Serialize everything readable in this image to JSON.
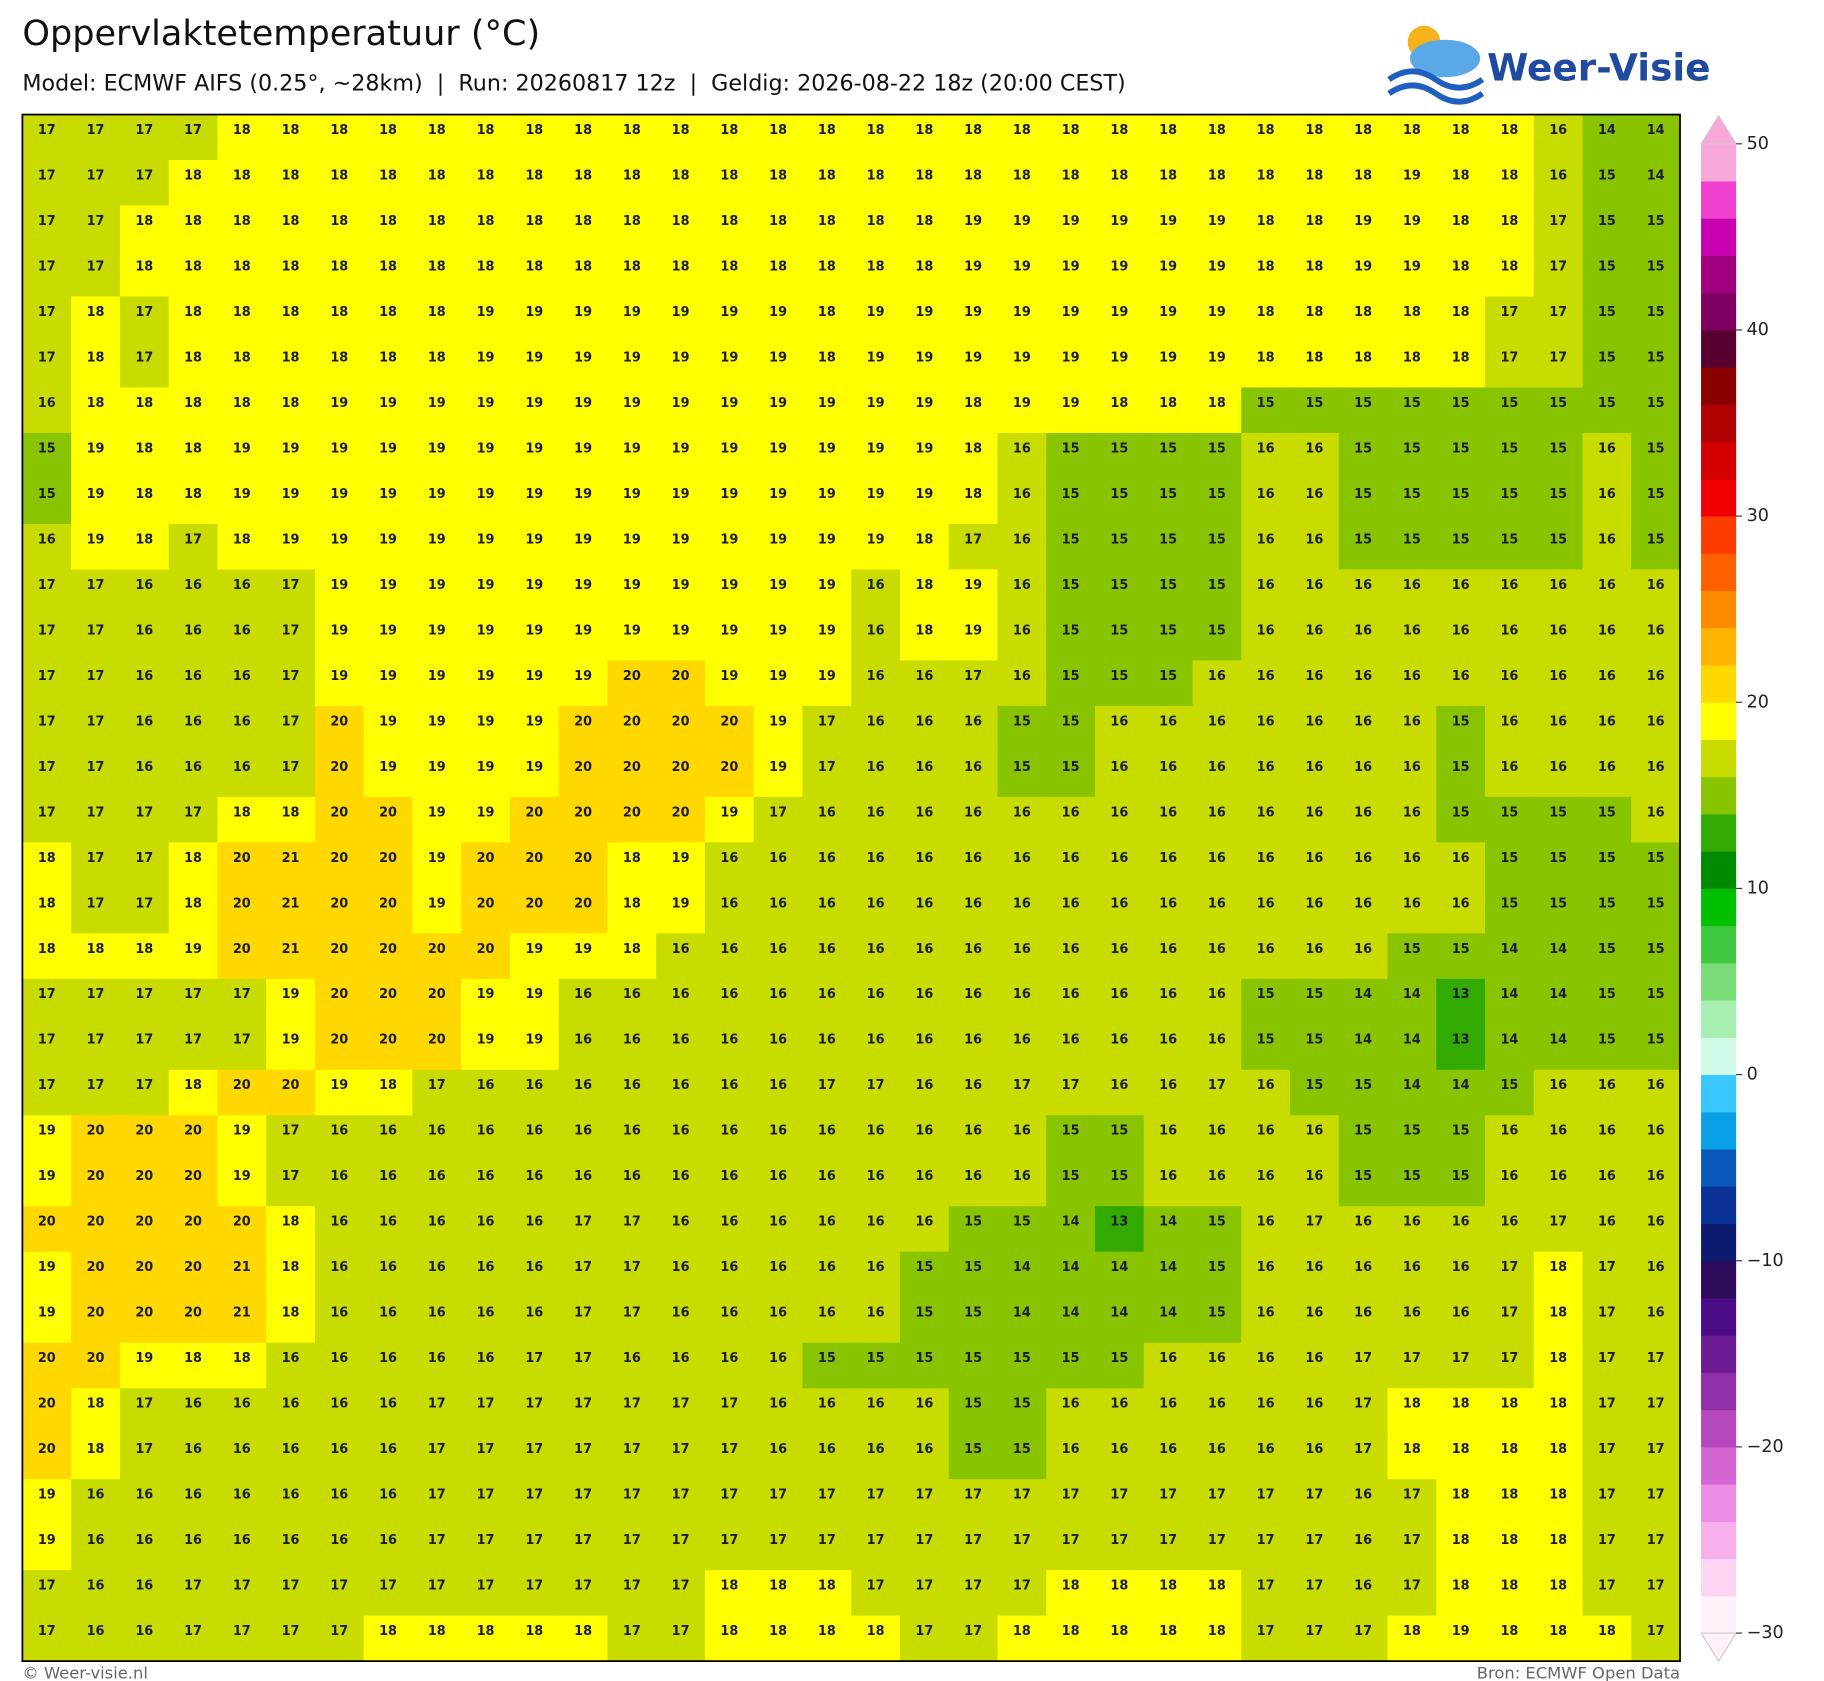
{
  "header": {
    "title": "Oppervlaktetemperatuur (°C)",
    "subtitle": "Model: ECMWF AIFS (0.25°, ~28km)  |  Run: 20260817 12z  |  Geldig: 2026-08-22 18z (20:00 CEST)",
    "logo": "Weer-Visie"
  },
  "map": {
    "values": [
      [
        17,
        17,
        17,
        17,
        18,
        18,
        18,
        18,
        18,
        18,
        18,
        18,
        18,
        18,
        18,
        18,
        18,
        18,
        18,
        18,
        18,
        18,
        18,
        18,
        18,
        18,
        18,
        18,
        18,
        18,
        18,
        16,
        14,
        14
      ],
      [
        17,
        17,
        17,
        18,
        18,
        18,
        18,
        18,
        18,
        18,
        18,
        18,
        18,
        18,
        18,
        18,
        18,
        18,
        18,
        18,
        18,
        18,
        18,
        18,
        18,
        18,
        18,
        18,
        19,
        18,
        18,
        16,
        15,
        14
      ],
      [
        17,
        17,
        18,
        18,
        18,
        18,
        18,
        18,
        18,
        18,
        18,
        18,
        18,
        18,
        18,
        18,
        18,
        18,
        18,
        19,
        19,
        19,
        19,
        19,
        19,
        18,
        18,
        19,
        19,
        18,
        18,
        17,
        15,
        15
      ],
      [
        17,
        17,
        18,
        18,
        18,
        18,
        18,
        18,
        18,
        18,
        18,
        18,
        18,
        18,
        18,
        18,
        18,
        18,
        18,
        19,
        19,
        19,
        19,
        19,
        19,
        18,
        18,
        19,
        19,
        18,
        18,
        17,
        15,
        15
      ],
      [
        17,
        18,
        17,
        18,
        18,
        18,
        18,
        18,
        18,
        19,
        19,
        19,
        19,
        19,
        19,
        19,
        18,
        19,
        19,
        19,
        19,
        19,
        19,
        19,
        19,
        18,
        18,
        18,
        18,
        18,
        17,
        17,
        15,
        15
      ],
      [
        17,
        18,
        17,
        18,
        18,
        18,
        18,
        18,
        18,
        19,
        19,
        19,
        19,
        19,
        19,
        19,
        18,
        19,
        19,
        19,
        19,
        19,
        19,
        19,
        19,
        18,
        18,
        18,
        18,
        18,
        17,
        17,
        15,
        15
      ],
      [
        16,
        18,
        18,
        18,
        18,
        18,
        19,
        19,
        19,
        19,
        19,
        19,
        19,
        19,
        19,
        19,
        19,
        19,
        19,
        18,
        19,
        19,
        18,
        18,
        18,
        15,
        15,
        15,
        15,
        15,
        15,
        15,
        15,
        15
      ],
      [
        15,
        19,
        18,
        18,
        19,
        19,
        19,
        19,
        19,
        19,
        19,
        19,
        19,
        19,
        19,
        19,
        19,
        19,
        19,
        18,
        16,
        15,
        15,
        15,
        15,
        16,
        16,
        15,
        15,
        15,
        15,
        15,
        16,
        15
      ],
      [
        15,
        19,
        18,
        18,
        19,
        19,
        19,
        19,
        19,
        19,
        19,
        19,
        19,
        19,
        19,
        19,
        19,
        19,
        19,
        18,
        16,
        15,
        15,
        15,
        15,
        16,
        16,
        15,
        15,
        15,
        15,
        15,
        16,
        15
      ],
      [
        16,
        19,
        18,
        17,
        18,
        19,
        19,
        19,
        19,
        19,
        19,
        19,
        19,
        19,
        19,
        19,
        19,
        19,
        18,
        17,
        16,
        15,
        15,
        15,
        15,
        16,
        16,
        15,
        15,
        15,
        15,
        15,
        16,
        15
      ],
      [
        17,
        17,
        16,
        16,
        16,
        17,
        19,
        19,
        19,
        19,
        19,
        19,
        19,
        19,
        19,
        19,
        19,
        16,
        18,
        19,
        16,
        15,
        15,
        15,
        15,
        16,
        16,
        16,
        16,
        16,
        16,
        16,
        16,
        16
      ],
      [
        17,
        17,
        16,
        16,
        16,
        17,
        19,
        19,
        19,
        19,
        19,
        19,
        19,
        19,
        19,
        19,
        19,
        16,
        18,
        19,
        16,
        15,
        15,
        15,
        15,
        16,
        16,
        16,
        16,
        16,
        16,
        16,
        16,
        16
      ],
      [
        17,
        17,
        16,
        16,
        16,
        17,
        19,
        19,
        19,
        19,
        19,
        19,
        20,
        20,
        19,
        19,
        19,
        16,
        16,
        17,
        16,
        15,
        15,
        15,
        16,
        16,
        16,
        16,
        16,
        16,
        16,
        16,
        16,
        16
      ],
      [
        17,
        17,
        16,
        16,
        16,
        17,
        20,
        19,
        19,
        19,
        19,
        20,
        20,
        20,
        20,
        19,
        17,
        16,
        16,
        16,
        15,
        15,
        16,
        16,
        16,
        16,
        16,
        16,
        16,
        15,
        16,
        16,
        16,
        16
      ],
      [
        17,
        17,
        16,
        16,
        16,
        17,
        20,
        19,
        19,
        19,
        19,
        20,
        20,
        20,
        20,
        19,
        17,
        16,
        16,
        16,
        15,
        15,
        16,
        16,
        16,
        16,
        16,
        16,
        16,
        15,
        16,
        16,
        16,
        16
      ],
      [
        17,
        17,
        17,
        17,
        18,
        18,
        20,
        20,
        19,
        19,
        20,
        20,
        20,
        20,
        19,
        17,
        16,
        16,
        16,
        16,
        16,
        16,
        16,
        16,
        16,
        16,
        16,
        16,
        16,
        15,
        15,
        15,
        15,
        16
      ],
      [
        18,
        17,
        17,
        18,
        20,
        21,
        20,
        20,
        19,
        20,
        20,
        20,
        18,
        19,
        16,
        16,
        16,
        16,
        16,
        16,
        16,
        16,
        16,
        16,
        16,
        16,
        16,
        16,
        16,
        16,
        15,
        15,
        15,
        15
      ],
      [
        18,
        17,
        17,
        18,
        20,
        21,
        20,
        20,
        19,
        20,
        20,
        20,
        18,
        19,
        16,
        16,
        16,
        16,
        16,
        16,
        16,
        16,
        16,
        16,
        16,
        16,
        16,
        16,
        16,
        16,
        15,
        15,
        15,
        15
      ],
      [
        18,
        18,
        18,
        19,
        20,
        21,
        20,
        20,
        20,
        20,
        19,
        19,
        18,
        16,
        16,
        16,
        16,
        16,
        16,
        16,
        16,
        16,
        16,
        16,
        16,
        16,
        16,
        16,
        15,
        15,
        14,
        14,
        15,
        15
      ],
      [
        17,
        17,
        17,
        17,
        17,
        19,
        20,
        20,
        20,
        19,
        19,
        16,
        16,
        16,
        16,
        16,
        16,
        16,
        16,
        16,
        16,
        16,
        16,
        16,
        16,
        15,
        15,
        14,
        14,
        13,
        14,
        14,
        15,
        15
      ],
      [
        17,
        17,
        17,
        17,
        17,
        19,
        20,
        20,
        20,
        19,
        19,
        16,
        16,
        16,
        16,
        16,
        16,
        16,
        16,
        16,
        16,
        16,
        16,
        16,
        16,
        15,
        15,
        14,
        14,
        13,
        14,
        14,
        15,
        15
      ],
      [
        17,
        17,
        17,
        18,
        20,
        20,
        19,
        18,
        17,
        16,
        16,
        16,
        16,
        16,
        16,
        16,
        17,
        17,
        16,
        16,
        17,
        17,
        16,
        16,
        17,
        16,
        15,
        15,
        14,
        14,
        15,
        16,
        16,
        16
      ],
      [
        19,
        20,
        20,
        20,
        19,
        17,
        16,
        16,
        16,
        16,
        16,
        16,
        16,
        16,
        16,
        16,
        16,
        16,
        16,
        16,
        16,
        15,
        15,
        16,
        16,
        16,
        16,
        15,
        15,
        15,
        16,
        16,
        16,
        16
      ],
      [
        19,
        20,
        20,
        20,
        19,
        17,
        16,
        16,
        16,
        16,
        16,
        16,
        16,
        16,
        16,
        16,
        16,
        16,
        16,
        16,
        16,
        15,
        15,
        16,
        16,
        16,
        16,
        15,
        15,
        15,
        16,
        16,
        16,
        16
      ],
      [
        20,
        20,
        20,
        20,
        20,
        18,
        16,
        16,
        16,
        16,
        16,
        17,
        17,
        16,
        16,
        16,
        16,
        16,
        16,
        15,
        15,
        14,
        13,
        14,
        15,
        16,
        17,
        16,
        16,
        16,
        16,
        17,
        16,
        16
      ],
      [
        19,
        20,
        20,
        20,
        21,
        18,
        16,
        16,
        16,
        16,
        16,
        17,
        17,
        16,
        16,
        16,
        16,
        16,
        15,
        15,
        14,
        14,
        14,
        14,
        15,
        16,
        16,
        16,
        16,
        16,
        17,
        18,
        17,
        16
      ],
      [
        19,
        20,
        20,
        20,
        21,
        18,
        16,
        16,
        16,
        16,
        16,
        17,
        17,
        16,
        16,
        16,
        16,
        16,
        15,
        15,
        14,
        14,
        14,
        14,
        15,
        16,
        16,
        16,
        16,
        16,
        17,
        18,
        17,
        16
      ],
      [
        20,
        20,
        19,
        18,
        18,
        16,
        16,
        16,
        16,
        16,
        17,
        17,
        16,
        16,
        16,
        16,
        15,
        15,
        15,
        15,
        15,
        15,
        15,
        16,
        16,
        16,
        16,
        17,
        17,
        17,
        17,
        18,
        17,
        17
      ],
      [
        20,
        18,
        17,
        16,
        16,
        16,
        16,
        16,
        17,
        17,
        17,
        17,
        17,
        17,
        17,
        16,
        16,
        16,
        16,
        15,
        15,
        16,
        16,
        16,
        16,
        16,
        16,
        17,
        18,
        18,
        18,
        18,
        17,
        17
      ],
      [
        20,
        18,
        17,
        16,
        16,
        16,
        16,
        16,
        17,
        17,
        17,
        17,
        17,
        17,
        17,
        16,
        16,
        16,
        16,
        15,
        15,
        16,
        16,
        16,
        16,
        16,
        16,
        17,
        18,
        18,
        18,
        18,
        17,
        17
      ],
      [
        19,
        16,
        16,
        16,
        16,
        16,
        16,
        16,
        17,
        17,
        17,
        17,
        17,
        17,
        17,
        17,
        17,
        17,
        17,
        17,
        17,
        17,
        17,
        17,
        17,
        17,
        17,
        16,
        17,
        18,
        18,
        18,
        17,
        17
      ],
      [
        19,
        16,
        16,
        16,
        16,
        16,
        16,
        16,
        17,
        17,
        17,
        17,
        17,
        17,
        17,
        17,
        17,
        17,
        17,
        17,
        17,
        17,
        17,
        17,
        17,
        17,
        17,
        16,
        17,
        18,
        18,
        18,
        17,
        17
      ],
      [
        17,
        16,
        16,
        17,
        17,
        17,
        17,
        17,
        17,
        17,
        17,
        17,
        17,
        17,
        18,
        18,
        18,
        17,
        17,
        17,
        17,
        18,
        18,
        18,
        18,
        17,
        17,
        16,
        17,
        18,
        18,
        18,
        17,
        17
      ],
      [
        17,
        16,
        16,
        17,
        17,
        17,
        17,
        18,
        18,
        18,
        18,
        18,
        17,
        17,
        18,
        18,
        18,
        18,
        17,
        17,
        18,
        18,
        18,
        18,
        18,
        17,
        17,
        17,
        18,
        19,
        18,
        18,
        18,
        17
      ]
    ],
    "colorbar": {
      "lim": [
        -30,
        50
      ],
      "ticks": [
        50,
        40,
        30,
        20,
        10,
        0,
        {
          "value": -10,
          "label": "−10"
        },
        {
          "value": -20,
          "label": "−20"
        },
        {
          "value": -30,
          "label": "−30"
        }
      ],
      "colors": [
        "#fff0fa",
        "#fdd5f3",
        "#f8b0ec",
        "#ec8ce4",
        "#d466d4",
        "#b448bc",
        "#9030a8",
        "#6e1c96",
        "#4c0c86",
        "#2c0a5c",
        "#0c1a70",
        "#0a3296",
        "#0a58bc",
        "#0aa0e6",
        "#38c8ff",
        "#d0fbe8",
        "#a8eeb0",
        "#78dc78",
        "#40c840",
        "#00c000",
        "#008a00",
        "#33aa00",
        "#88c400",
        "#c8dc00",
        "#ffff00",
        "#ffd800",
        "#ffb400",
        "#ff8c00",
        "#ff6000",
        "#ff3c00",
        "#f00000",
        "#d40000",
        "#b00000",
        "#8a0000",
        "#5a0030",
        "#7e0060",
        "#a00080",
        "#c800b0",
        "#f040d0",
        "#f8a8d8"
      ]
    }
  },
  "footer": {
    "credit": "© Weer-visie.nl",
    "source": "Bron: ECMWF Open Data"
  }
}
